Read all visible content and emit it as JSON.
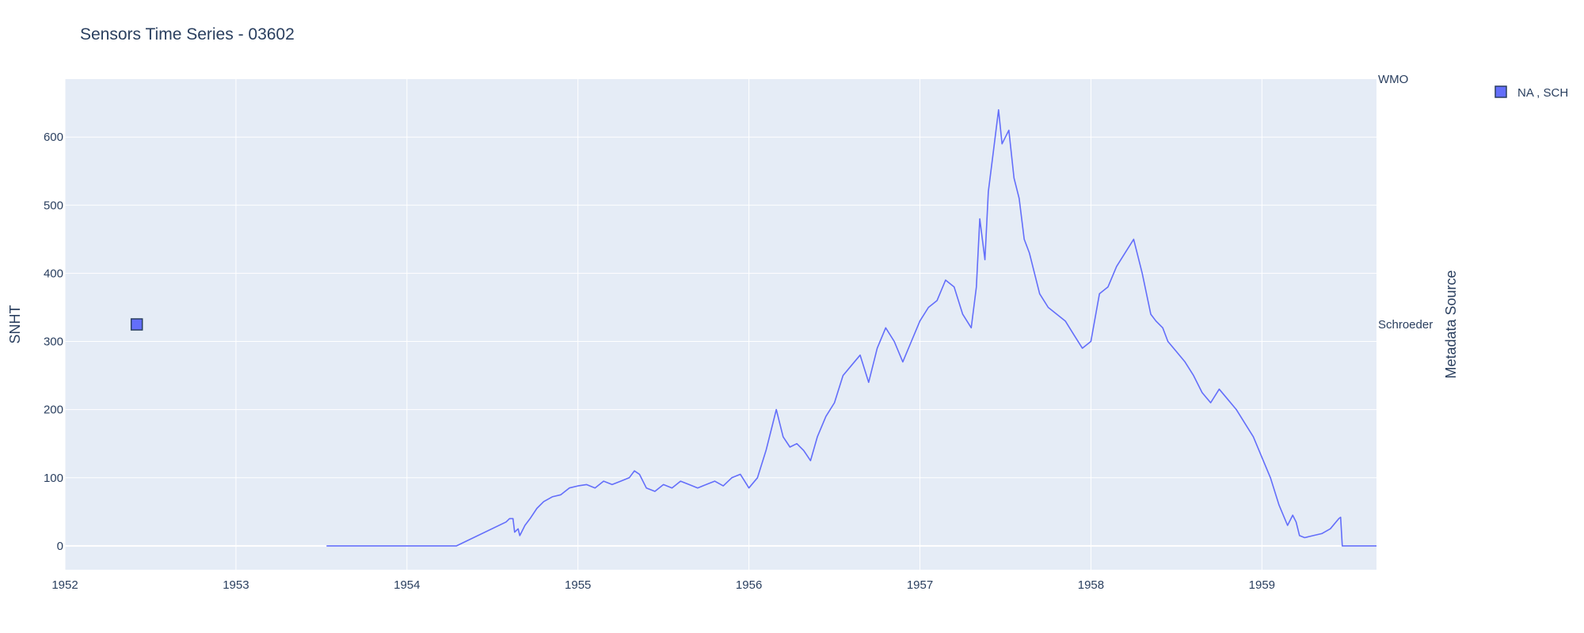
{
  "chart_data": {
    "type": "line",
    "title": "Sensors Time Series - 03602",
    "ylabel": "SNHT",
    "y2label": "Metadata Source",
    "xlim": [
      1952.0,
      1959.67
    ],
    "ylim": [
      -35,
      685
    ],
    "x_ticks": [
      1952,
      1953,
      1954,
      1955,
      1956,
      1957,
      1958,
      1959
    ],
    "x_tick_labels": [
      "1952",
      "1953",
      "1954",
      "1955",
      "1956",
      "1957",
      "1958",
      "1959"
    ],
    "y_ticks": [
      0,
      100,
      200,
      300,
      400,
      500,
      600
    ],
    "y_tick_labels": [
      "0",
      "100",
      "200",
      "300",
      "400",
      "500",
      "600"
    ],
    "y2_categories": [
      "WMO",
      "Schroeder"
    ],
    "grid": true,
    "legend_position": "top-right",
    "series": [
      {
        "type": "line",
        "axis": "left",
        "color": "#636efa",
        "x": [
          1953.53,
          1954.29,
          1954.58,
          1954.6,
          1954.62,
          1954.63,
          1954.65,
          1954.66,
          1954.67,
          1954.69,
          1954.72,
          1954.76,
          1954.8,
          1954.85,
          1954.9,
          1954.95,
          1955.0,
          1955.05,
          1955.1,
          1955.15,
          1955.2,
          1955.25,
          1955.3,
          1955.33,
          1955.36,
          1955.4,
          1955.45,
          1955.5,
          1955.55,
          1955.6,
          1955.65,
          1955.7,
          1955.75,
          1955.8,
          1955.85,
          1955.9,
          1955.95,
          1956.0,
          1956.05,
          1956.1,
          1956.13,
          1956.16,
          1956.18,
          1956.2,
          1956.24,
          1956.28,
          1956.32,
          1956.36,
          1956.4,
          1956.45,
          1956.5,
          1956.55,
          1956.6,
          1956.65,
          1956.7,
          1956.75,
          1956.8,
          1956.85,
          1956.9,
          1956.95,
          1957.0,
          1957.05,
          1957.1,
          1957.15,
          1957.2,
          1957.25,
          1957.3,
          1957.33,
          1957.35,
          1957.38,
          1957.4,
          1957.43,
          1957.46,
          1957.48,
          1957.5,
          1957.52,
          1957.55,
          1957.58,
          1957.61,
          1957.64,
          1957.67,
          1957.7,
          1957.75,
          1957.8,
          1957.85,
          1957.9,
          1957.95,
          1958.0,
          1958.05,
          1958.1,
          1958.15,
          1958.2,
          1958.25,
          1958.3,
          1958.35,
          1958.38,
          1958.42,
          1958.45,
          1958.5,
          1958.55,
          1958.6,
          1958.65,
          1958.7,
          1958.75,
          1958.8,
          1958.85,
          1958.9,
          1958.95,
          1959.0,
          1959.05,
          1959.1,
          1959.15,
          1959.18,
          1959.2,
          1959.22,
          1959.25,
          1959.3,
          1959.35,
          1959.4,
          1959.45,
          1959.46,
          1959.47,
          1959.55,
          1959.67
        ],
        "y": [
          0,
          0,
          35,
          40,
          40,
          20,
          25,
          15,
          20,
          30,
          40,
          55,
          65,
          72,
          75,
          85,
          88,
          90,
          85,
          95,
          90,
          95,
          100,
          110,
          105,
          85,
          80,
          90,
          85,
          95,
          90,
          85,
          90,
          95,
          88,
          100,
          105,
          85,
          100,
          140,
          170,
          200,
          180,
          160,
          145,
          150,
          140,
          125,
          160,
          190,
          210,
          250,
          265,
          280,
          240,
          290,
          320,
          300,
          270,
          300,
          330,
          350,
          360,
          390,
          380,
          340,
          320,
          380,
          480,
          420,
          520,
          580,
          640,
          590,
          600,
          610,
          540,
          510,
          450,
          430,
          400,
          370,
          350,
          340,
          330,
          310,
          290,
          300,
          370,
          380,
          410,
          430,
          450,
          400,
          340,
          330,
          320,
          300,
          285,
          270,
          250,
          225,
          210,
          230,
          215,
          200,
          180,
          160,
          130,
          100,
          60,
          30,
          45,
          35,
          15,
          12,
          15,
          18,
          25,
          40,
          42,
          0,
          0,
          0
        ]
      },
      {
        "type": "scatter",
        "axis": "right",
        "name": "NA , SCH",
        "color": "#636efa",
        "x": [
          1952.42
        ],
        "y": [
          "Schroeder"
        ]
      }
    ]
  }
}
